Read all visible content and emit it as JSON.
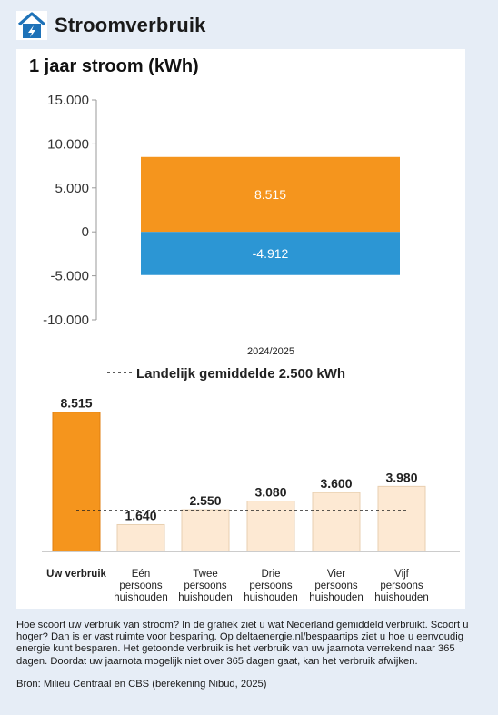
{
  "header": {
    "title": "Stroomverbruik",
    "icon": "house-lightning-icon",
    "icon_color": "#1e72b8"
  },
  "chart_data": [
    {
      "type": "bar",
      "title": "1 jaar stroom (kWh)",
      "categories": [
        "2024/2025"
      ],
      "series": [
        {
          "values": [
            8515
          ],
          "labels": [
            "8.515"
          ],
          "color": "#f5951d"
        },
        {
          "values": [
            -4912
          ],
          "labels": [
            "-4.912"
          ],
          "color": "#2c96d4"
        }
      ],
      "stacked": true,
      "yticks": [
        "15.000",
        "10.000",
        "5.000",
        "0",
        "-5.000",
        "-10.000"
      ],
      "ytick_values": [
        15000,
        10000,
        5000,
        0,
        -5000,
        -10000
      ],
      "ylim": [
        -10000,
        15000
      ],
      "grid": false
    },
    {
      "type": "bar",
      "reference_line": {
        "label": "Landelijk gemiddelde 2.500 kWh",
        "value": 2500
      },
      "bars": [
        {
          "lines": [
            "Uw verbruik"
          ],
          "value": 8515,
          "label": "8.515",
          "color": "#f5951d",
          "highlight": true
        },
        {
          "lines": [
            "Eén",
            "persoons",
            "huishouden"
          ],
          "value": 1640,
          "label": "1.640",
          "color": "#fde9d3"
        },
        {
          "lines": [
            "Twee",
            "persoons",
            "huishouden"
          ],
          "value": 2550,
          "label": "2.550",
          "color": "#fde9d3"
        },
        {
          "lines": [
            "Drie",
            "persoons",
            "huishouden"
          ],
          "value": 3080,
          "label": "3.080",
          "color": "#fde9d3"
        },
        {
          "lines": [
            "Vier",
            "persoons",
            "huishouden"
          ],
          "value": 3600,
          "label": "3.600",
          "color": "#fde9d3"
        },
        {
          "lines": [
            "Vijf",
            "persoons",
            "huishouden"
          ],
          "value": 3980,
          "label": "3.980",
          "color": "#fde9d3"
        }
      ],
      "ylim": [
        0,
        9000
      ]
    }
  ],
  "footer": {
    "text": "Hoe scoort uw verbruik van stroom? In de grafiek ziet u wat Nederland gemiddeld verbruikt. Scoort u hoger? Dan is er vast ruimte voor besparing. Op deltaenergie.nl/bespaartips ziet u hoe u eenvoudig energie kunt besparen. Het getoonde verbruik is het verbruik van uw jaarnota verrekend naar 365 dagen. Doordat uw jaarnota mogelijk niet over 365 dagen gaat, kan het verbruik afwijken.",
    "source": "Bron: Milieu Centraal en CBS (berekening Nibud, 2025)"
  }
}
